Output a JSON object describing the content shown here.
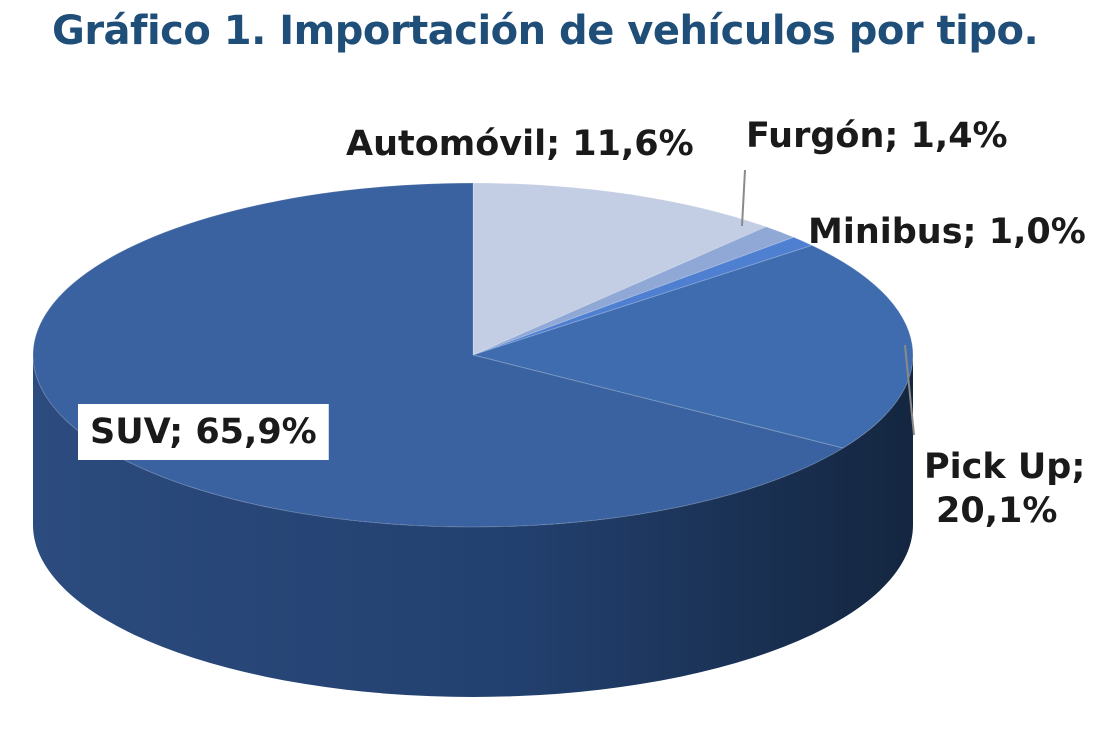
{
  "chart_data": {
    "type": "pie",
    "title": "Gráfico 1. Importación de vehículos por tipo.",
    "three_d": true,
    "slices": [
      {
        "category": "Automóvil",
        "value": 11.6,
        "label": "Automóvil; 11,6%",
        "color": "#c3cde3"
      },
      {
        "category": "Furgón",
        "value": 1.4,
        "label": "Furgón; 1,4%",
        "color": "#8fa8d6"
      },
      {
        "category": "Minibus",
        "value": 1.0,
        "label": "Minibus; 1,0%",
        "color": "#4f7fd0"
      },
      {
        "category": "Pick Up",
        "value": 20.1,
        "label_lines": [
          "Pick Up;",
          "20,1%"
        ],
        "color": "#3f6cae"
      },
      {
        "category": "SUV",
        "value": 65.9,
        "label": "SUV; 65,9%",
        "color": "#3b62a0"
      }
    ]
  }
}
